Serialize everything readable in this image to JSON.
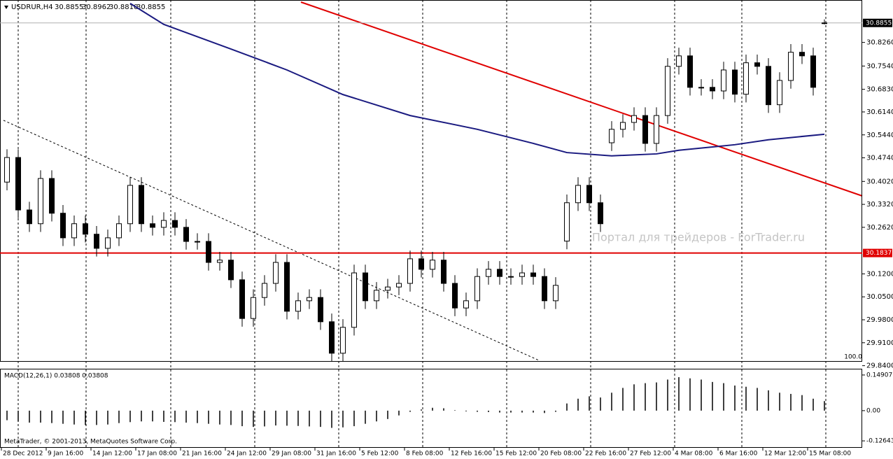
{
  "chart_data": {
    "type": "candlestick",
    "title": "USDRUR,H4",
    "quote": [
      "30.8855",
      "30.8962",
      "30.8810",
      "30.8855"
    ],
    "watermark": "Портал для трейдеров - ForTrader.ru",
    "copyright": "MetaTrader, © 2001-2013, MetaQuotes Software Corp.",
    "scale_label": "100.0",
    "ylim": [
      29.852,
      30.949
    ],
    "yticks": [
      {
        "value": 30.826,
        "label": "30.8260"
      },
      {
        "value": 30.754,
        "label": "30.7540"
      },
      {
        "value": 30.683,
        "label": "30.6830"
      },
      {
        "value": 30.614,
        "label": "30.6140"
      },
      {
        "value": 30.544,
        "label": "30.5440"
      },
      {
        "value": 30.474,
        "label": "30.4740"
      },
      {
        "value": 30.402,
        "label": "30.4020"
      },
      {
        "value": 30.332,
        "label": "30.3320"
      },
      {
        "value": 30.262,
        "label": "30.2620"
      },
      {
        "value": 30.12,
        "label": "30.1200"
      },
      {
        "value": 30.05,
        "label": "30.0500"
      },
      {
        "value": 29.98,
        "label": "29.9800"
      },
      {
        "value": 29.91,
        "label": "29.9100"
      },
      {
        "value": 29.84,
        "label": "29.8400"
      }
    ],
    "xticks": [
      {
        "value": 0,
        "label": "28 Dec 2012"
      },
      {
        "value": 4,
        "label": "9 Jan 16:00"
      },
      {
        "value": 8,
        "label": "14 Jan 12:00"
      },
      {
        "value": 12,
        "label": "17 Jan 08:00"
      },
      {
        "value": 16,
        "label": "21 Jan 16:00"
      },
      {
        "value": 20,
        "label": "24 Jan 12:00"
      },
      {
        "value": 24,
        "label": "29 Jan 08:00"
      },
      {
        "value": 28,
        "label": "31 Jan 16:00"
      },
      {
        "value": 32,
        "label": "5 Feb 12:00"
      },
      {
        "value": 36,
        "label": "8 Feb 08:00"
      },
      {
        "value": 40,
        "label": "12 Feb 16:00"
      },
      {
        "value": 44,
        "label": "15 Feb 12:00"
      },
      {
        "value": 48,
        "label": "20 Feb 08:00"
      },
      {
        "value": 52,
        "label": "22 Feb 16:00"
      },
      {
        "value": 56,
        "label": "27 Feb 12:00"
      },
      {
        "value": 60,
        "label": "4 Mar 08:00"
      },
      {
        "value": 64,
        "label": "6 Mar 16:00"
      },
      {
        "value": 68,
        "label": "12 Mar 12:00"
      },
      {
        "value": 72,
        "label": "15 Mar 08:00"
      }
    ],
    "candles": {
      "open": [
        30.4,
        30.475,
        30.315,
        30.273,
        30.411,
        30.305,
        30.23,
        30.273,
        30.241,
        30.198,
        30.23,
        30.273,
        30.39,
        30.273,
        30.262,
        30.283,
        30.262,
        30.219,
        30.219,
        30.155,
        30.162,
        30.102,
        29.984,
        30.048,
        30.091,
        30.155,
        30.006,
        30.038,
        30.048,
        29.974,
        29.878,
        29.957,
        30.123,
        30.038,
        30.07,
        30.08,
        30.091,
        30.166,
        30.134,
        30.162,
        30.091,
        30.016,
        30.038,
        30.112,
        30.134,
        30.112,
        30.112,
        30.123,
        30.112,
        30.038,
        30.22,
        30.337,
        30.39,
        30.337,
        30.52,
        30.561,
        30.582,
        30.603,
        30.518,
        30.603,
        30.753,
        30.785,
        30.689,
        30.689,
        30.678,
        30.742,
        30.668,
        30.764,
        30.753,
        30.636,
        30.71,
        30.796,
        30.785,
        30.8855
      ],
      "high": [
        30.5,
        30.5,
        30.34,
        30.436,
        30.436,
        30.33,
        30.298,
        30.298,
        30.266,
        30.255,
        30.298,
        30.415,
        30.415,
        30.298,
        30.308,
        30.308,
        30.287,
        30.244,
        30.244,
        30.187,
        30.187,
        30.127,
        30.073,
        30.116,
        30.18,
        30.18,
        30.063,
        30.073,
        30.073,
        29.999,
        29.982,
        30.148,
        30.148,
        30.095,
        30.105,
        30.116,
        30.191,
        30.191,
        30.187,
        30.187,
        30.116,
        30.063,
        30.137,
        30.159,
        30.159,
        30.137,
        30.148,
        30.148,
        30.137,
        30.11,
        30.362,
        30.415,
        30.415,
        30.362,
        30.586,
        30.607,
        30.628,
        30.628,
        30.628,
        30.778,
        30.81,
        30.81,
        30.714,
        30.714,
        30.767,
        30.767,
        30.789,
        30.789,
        30.778,
        30.735,
        30.821,
        30.821,
        30.81,
        30.8962
      ],
      "low": [
        30.375,
        30.29,
        30.248,
        30.248,
        30.28,
        30.205,
        30.205,
        30.216,
        30.173,
        30.173,
        30.205,
        30.248,
        30.248,
        30.237,
        30.237,
        30.237,
        30.194,
        30.194,
        30.13,
        30.13,
        30.077,
        29.959,
        29.959,
        30.023,
        30.066,
        29.981,
        29.981,
        30.013,
        29.949,
        29.853,
        29.853,
        29.932,
        30.013,
        30.013,
        30.045,
        30.055,
        30.066,
        30.109,
        30.109,
        30.066,
        29.991,
        29.991,
        30.013,
        30.087,
        30.087,
        30.087,
        30.087,
        30.087,
        30.013,
        30.013,
        30.195,
        30.312,
        30.312,
        30.248,
        30.495,
        30.536,
        30.557,
        30.493,
        30.493,
        30.578,
        30.728,
        30.664,
        30.664,
        30.653,
        30.653,
        30.643,
        30.643,
        30.728,
        30.611,
        30.611,
        30.685,
        30.76,
        30.664,
        30.881
      ],
      "close": [
        30.475,
        30.315,
        30.273,
        30.411,
        30.305,
        30.23,
        30.273,
        30.241,
        30.198,
        30.23,
        30.273,
        30.39,
        30.273,
        30.262,
        30.283,
        30.262,
        30.219,
        30.219,
        30.155,
        30.162,
        30.102,
        29.984,
        30.048,
        30.091,
        30.155,
        30.006,
        30.038,
        30.048,
        29.974,
        29.878,
        29.957,
        30.123,
        30.038,
        30.07,
        30.08,
        30.091,
        30.166,
        30.134,
        30.162,
        30.091,
        30.016,
        30.038,
        30.112,
        30.134,
        30.112,
        30.112,
        30.123,
        30.112,
        30.038,
        30.085,
        30.337,
        30.39,
        30.337,
        30.273,
        30.561,
        30.582,
        30.603,
        30.518,
        30.603,
        30.753,
        30.785,
        30.689,
        30.689,
        30.678,
        30.742,
        30.668,
        30.764,
        30.753,
        30.636,
        30.71,
        30.796,
        30.785,
        30.689,
        30.8855
      ]
    },
    "moving_average": {
      "color": "#1a1a80",
      "x": [
        11,
        14,
        20,
        25,
        30,
        36,
        42,
        47,
        50,
        54,
        58,
        60,
        65,
        68,
        73
      ],
      "values": [
        30.945,
        30.881,
        30.806,
        30.742,
        30.667,
        30.603,
        30.561,
        30.518,
        30.49,
        30.48,
        30.486,
        30.497,
        30.514,
        30.529,
        30.546
      ]
    },
    "level": {
      "value": 30.1837,
      "label": "30.1837",
      "color": "#e00000"
    },
    "last_price": {
      "value": 30.8855,
      "label": "30.8855"
    },
    "macd": {
      "type": "bar",
      "title": "MACD(12,26,1) 0.03808 0.03808",
      "color": "#000000",
      "ylim": [
        -0.1554,
        0.1723
      ],
      "yticks": [
        0.14907,
        {
          "value": 0,
          "label": "0.00"
        },
        -0.12643
      ],
      "values": [
        -0.04,
        -0.045,
        -0.05,
        -0.05,
        -0.052,
        -0.055,
        -0.058,
        -0.06,
        -0.06,
        -0.058,
        -0.052,
        -0.048,
        -0.045,
        -0.045,
        -0.047,
        -0.048,
        -0.05,
        -0.052,
        -0.055,
        -0.058,
        -0.06,
        -0.065,
        -0.068,
        -0.066,
        -0.062,
        -0.063,
        -0.064,
        -0.066,
        -0.068,
        -0.072,
        -0.07,
        -0.065,
        -0.055,
        -0.045,
        -0.035,
        -0.02,
        -0.005,
        0.005,
        0.012,
        0.01,
        0.002,
        -0.003,
        -0.005,
        -0.006,
        -0.008,
        -0.008,
        -0.008,
        -0.008,
        -0.01,
        -0.005,
        0.03,
        0.05,
        0.06,
        0.055,
        0.075,
        0.095,
        0.11,
        0.115,
        0.118,
        0.13,
        0.14,
        0.135,
        0.13,
        0.12,
        0.115,
        0.105,
        0.1,
        0.095,
        0.085,
        0.075,
        0.07,
        0.065,
        0.05,
        0.04
      ]
    }
  }
}
